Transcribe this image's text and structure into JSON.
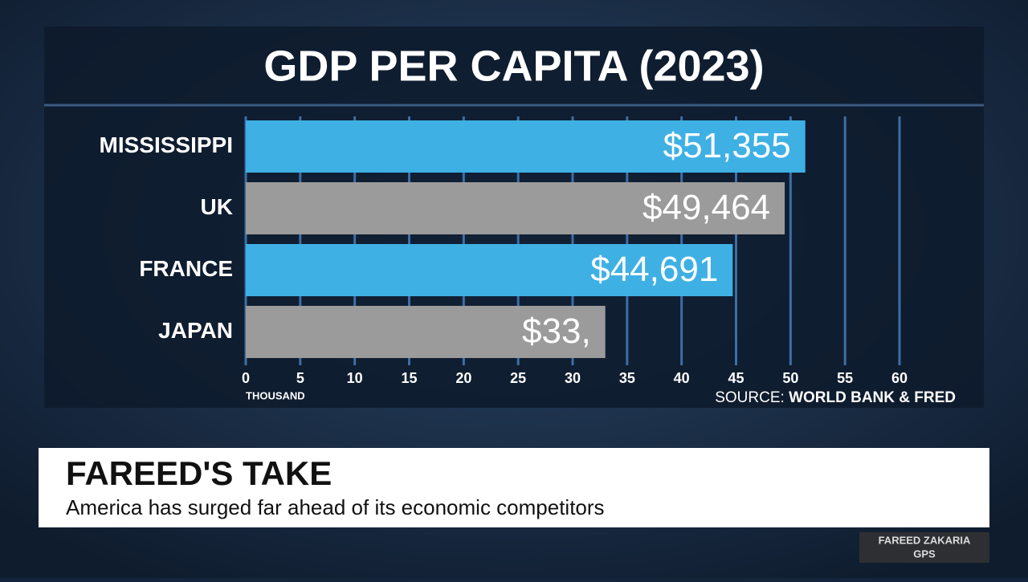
{
  "chart_data": {
    "type": "bar",
    "orientation": "horizontal",
    "title": "GDP PER CAPITA (2023)",
    "categories": [
      "MISSISSIPPI",
      "UK",
      "FRANCE",
      "JAPAN"
    ],
    "values": [
      51.355,
      49.464,
      44.691,
      33
    ],
    "value_labels": [
      "$51,355",
      "$49,464",
      "$44,691",
      "$33,"
    ],
    "colors": [
      "#3fb0e4",
      "#9b9b9b",
      "#3fb0e4",
      "#9b9b9b"
    ],
    "xlim": [
      0,
      60
    ],
    "xticks": [
      0,
      5,
      10,
      15,
      20,
      25,
      30,
      35,
      40,
      45,
      50,
      55,
      60
    ],
    "xlabel": "THOUSAND",
    "grid": true,
    "source_label": "SOURCE:",
    "source": "WORLD BANK & FRED"
  },
  "lower_third": {
    "title": "FAREED'S TAKE",
    "subtitle": "America has surged far ahead of its economic competitors"
  },
  "logo": {
    "line1": "FAREED ZAKARIA",
    "line2": "GPS"
  }
}
